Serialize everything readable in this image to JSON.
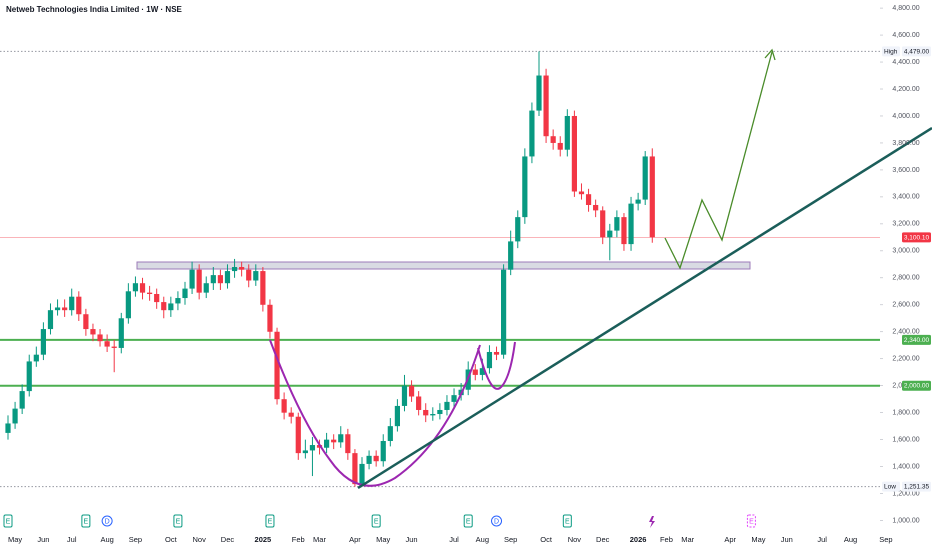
{
  "chart_data": {
    "type": "candlestick",
    "title": "Netweb Technologies India Limited · 1W · NSE",
    "up_color": "#089981",
    "down_color": "#f23645",
    "ylim": [
      930,
      4860
    ],
    "yticks": [
      {
        "value": 1000,
        "label": "1,000.00"
      },
      {
        "value": 1200,
        "label": "1,200.00"
      },
      {
        "value": 1400,
        "label": "1,400.00"
      },
      {
        "value": 1600,
        "label": "1,600.00"
      },
      {
        "value": 1800,
        "label": "1,800.00"
      },
      {
        "value": 2000,
        "label": "2,000.00"
      },
      {
        "value": 2200,
        "label": "2,200.00"
      },
      {
        "value": 2400,
        "label": "2,400.00"
      },
      {
        "value": 2600,
        "label": "2,600.00"
      },
      {
        "value": 2800,
        "label": "2,800.00"
      },
      {
        "value": 3000,
        "label": "3,000.00"
      },
      {
        "value": 3200,
        "label": "3,200.00"
      },
      {
        "value": 3400,
        "label": "3,400.00"
      },
      {
        "value": 3600,
        "label": "3,600.00"
      },
      {
        "value": 3800,
        "label": "3,800.00"
      },
      {
        "value": 4000,
        "label": "4,000.00"
      },
      {
        "value": 4200,
        "label": "4,200.00"
      },
      {
        "value": 4400,
        "label": "4,400.00"
      },
      {
        "value": 4600,
        "label": "4,600.00"
      },
      {
        "value": 4800,
        "label": "4,800.00"
      }
    ],
    "categories": [
      null,
      "May",
      null,
      null,
      null,
      "Jun",
      null,
      null,
      null,
      "Jul",
      null,
      null,
      null,
      null,
      "Aug",
      null,
      null,
      null,
      "Sep",
      null,
      null,
      null,
      null,
      "Oct",
      null,
      null,
      null,
      "Nov",
      null,
      null,
      null,
      "Dec",
      null,
      null,
      null,
      null,
      "2025",
      null,
      null,
      null,
      null,
      "Feb",
      null,
      null,
      "Mar",
      null,
      null,
      null,
      null,
      "Apr",
      null,
      null,
      null,
      "May",
      null,
      null,
      null,
      "Jun",
      null,
      null,
      null,
      null,
      null,
      "Jul",
      null,
      null,
      null,
      "Aug",
      null,
      null,
      null,
      "Sep",
      null,
      null,
      null,
      null,
      "Oct",
      null,
      null,
      null,
      "Nov",
      null,
      null,
      null,
      "Dec",
      null,
      null,
      null,
      null,
      "2026",
      null,
      null,
      null,
      "Feb",
      null,
      null,
      "Mar",
      null,
      null,
      null,
      null,
      null,
      "Apr",
      null,
      null,
      null,
      "May",
      null,
      null,
      null,
      "Jun",
      null,
      null,
      null,
      null,
      "Jul",
      null,
      null,
      null,
      "Aug",
      null,
      null,
      null,
      null,
      "Sep"
    ],
    "events": [
      "E",
      null,
      null,
      null,
      null,
      null,
      null,
      null,
      null,
      null,
      null,
      "E",
      null,
      null,
      "D",
      null,
      null,
      null,
      null,
      null,
      null,
      null,
      null,
      null,
      "E",
      null,
      null,
      null,
      null,
      null,
      null,
      null,
      null,
      null,
      null,
      null,
      null,
      "E",
      null,
      null,
      null,
      null,
      null,
      null,
      null,
      null,
      null,
      null,
      null,
      null,
      null,
      null,
      "E",
      null,
      null,
      null,
      null,
      null,
      null,
      null,
      null,
      null,
      null,
      null,
      null,
      "E",
      null,
      null,
      null,
      "D",
      null,
      null,
      null,
      null,
      null,
      null,
      null,
      null,
      null,
      "E",
      null,
      null,
      null,
      null,
      null,
      null,
      null,
      null,
      null,
      null,
      null,
      null,
      null,
      null,
      null,
      null,
      null,
      null,
      null,
      null,
      null,
      null,
      null,
      null,
      null,
      "E",
      null,
      null,
      null,
      null,
      null,
      null,
      null,
      null,
      null,
      null,
      null,
      null,
      null,
      null,
      null,
      null,
      null,
      null,
      null
    ],
    "open": [
      1650,
      1720,
      1830,
      1960,
      2180,
      2230,
      2420,
      2560,
      2580,
      2560,
      2660,
      2530,
      2420,
      2380,
      2330,
      2290,
      2280,
      2500,
      2700,
      2760,
      2690,
      2680,
      2620,
      2560,
      2610,
      2650,
      2720,
      2860,
      2690,
      2760,
      2820,
      2760,
      2850,
      2880,
      2860,
      2780,
      2850,
      2600,
      2400,
      1900,
      1800,
      1770,
      1500,
      1520,
      1560,
      1540,
      1600,
      1580,
      1640,
      1500,
      1270,
      1420,
      1480,
      1440,
      1590,
      1700,
      1850,
      2000,
      1920,
      1820,
      1780,
      1790,
      1820,
      1880,
      1930,
      1970,
      2120,
      2080,
      2130,
      2250,
      2230,
      2860,
      3070,
      3250,
      3700,
      4040,
      4300,
      3850,
      3800,
      3750,
      4000,
      3440,
      3420,
      3340,
      3300,
      3100,
      3150,
      3250,
      3050,
      3350,
      3380,
      3700,
      null,
      null,
      null,
      null,
      null,
      null,
      null,
      null,
      null,
      null,
      null,
      null,
      null,
      null,
      null,
      null,
      null,
      null,
      null,
      null,
      null,
      null,
      null,
      null,
      null,
      null,
      null,
      null,
      null,
      null,
      null,
      null,
      null
    ],
    "high": [
      1780,
      1880,
      2010,
      2230,
      2290,
      2470,
      2610,
      2640,
      2640,
      2720,
      2700,
      2570,
      2460,
      2420,
      2380,
      2340,
      2540,
      2760,
      2810,
      2800,
      2740,
      2720,
      2660,
      2660,
      2700,
      2770,
      2920,
      2900,
      2810,
      2880,
      2860,
      2900,
      2940,
      2920,
      2900,
      2900,
      2880,
      2640,
      2430,
      1950,
      1840,
      1800,
      1600,
      1620,
      1600,
      1650,
      1640,
      1700,
      1680,
      1530,
      1470,
      1520,
      1520,
      1640,
      1760,
      1900,
      2080,
      2040,
      1960,
      1870,
      1840,
      1870,
      1930,
      1980,
      2020,
      2180,
      2160,
      2200,
      2300,
      2290,
      2900,
      3150,
      3300,
      3760,
      4100,
      4479,
      4350,
      3900,
      3850,
      4050,
      4040,
      3500,
      3460,
      3380,
      3330,
      3200,
      3300,
      3280,
      3400,
      3430,
      3740,
      3760,
      null,
      null,
      null,
      null,
      null,
      null,
      null,
      null,
      null,
      null,
      null,
      null,
      null,
      null,
      null,
      null,
      null,
      null,
      null,
      null,
      null,
      null,
      null,
      null,
      null,
      null,
      null,
      null,
      null,
      null,
      null,
      null,
      null
    ],
    "low": [
      1600,
      1680,
      1790,
      1920,
      2140,
      2190,
      2380,
      2520,
      2510,
      2520,
      2480,
      2370,
      2330,
      2290,
      2250,
      2100,
      2240,
      2460,
      2660,
      2640,
      2630,
      2570,
      2500,
      2510,
      2560,
      2600,
      2680,
      2640,
      2650,
      2710,
      2710,
      2720,
      2800,
      2810,
      2730,
      2740,
      2550,
      2350,
      1860,
      1750,
      1720,
      1450,
      1460,
      1330,
      1490,
      1500,
      1530,
      1540,
      1450,
      1251.35,
      1260,
      1380,
      1400,
      1400,
      1550,
      1660,
      1810,
      1880,
      1780,
      1730,
      1740,
      1750,
      1780,
      1840,
      1890,
      1930,
      2040,
      2040,
      2090,
      2190,
      2200,
      2820,
      3020,
      3200,
      3650,
      4000,
      3800,
      3750,
      3700,
      3700,
      3400,
      3380,
      3290,
      3250,
      3050,
      2930,
      3100,
      3000,
      3000,
      3300,
      3340,
      3060,
      null,
      null,
      null,
      null,
      null,
      null,
      null,
      null,
      null,
      null,
      null,
      null,
      null,
      null,
      null,
      null,
      null,
      null,
      null,
      null,
      null,
      null,
      null,
      null,
      null,
      null,
      null,
      null,
      null,
      null,
      null,
      null,
      null
    ],
    "close": [
      1720,
      1830,
      1960,
      2180,
      2230,
      2420,
      2560,
      2580,
      2560,
      2660,
      2530,
      2420,
      2380,
      2330,
      2290,
      2280,
      2500,
      2700,
      2760,
      2690,
      2680,
      2620,
      2560,
      2610,
      2650,
      2720,
      2860,
      2690,
      2760,
      2820,
      2760,
      2850,
      2880,
      2860,
      2780,
      2850,
      2600,
      2400,
      1900,
      1800,
      1770,
      1500,
      1520,
      1560,
      1540,
      1600,
      1580,
      1640,
      1500,
      1270,
      1420,
      1480,
      1440,
      1590,
      1700,
      1850,
      2000,
      1920,
      1820,
      1780,
      1790,
      1820,
      1880,
      1930,
      1970,
      2120,
      2080,
      2130,
      2250,
      2230,
      2860,
      3070,
      3250,
      3700,
      4040,
      4300,
      3850,
      3800,
      3750,
      4000,
      3440,
      3420,
      3340,
      3300,
      3100,
      3150,
      3250,
      3050,
      3350,
      3380,
      3700,
      3100,
      null,
      null,
      null,
      null,
      null,
      null,
      null,
      null,
      null,
      null,
      null,
      null,
      null,
      null,
      null,
      null,
      null,
      null,
      null,
      null,
      null,
      null,
      null,
      null,
      null,
      null,
      null,
      null,
      null,
      null,
      null,
      null,
      null
    ],
    "levels": [
      {
        "label": "High",
        "value": 4479,
        "value_label": "4,479.00",
        "color": "#9598a1",
        "style": "dotted"
      },
      {
        "value": 3100.1,
        "value_label": "3,100.10",
        "color": "#f23645",
        "style": "thin"
      },
      {
        "value": 2340,
        "value_label": "2,340.00",
        "color": "#4caf50",
        "style": "solid"
      },
      {
        "value": 2000,
        "value_label": "2,000.00",
        "color": "#4caf50",
        "style": "solid"
      },
      {
        "label": "Low",
        "value": 1251.35,
        "value_label": "1,251.35",
        "color": "#9598a1",
        "style": "dotted"
      }
    ]
  }
}
